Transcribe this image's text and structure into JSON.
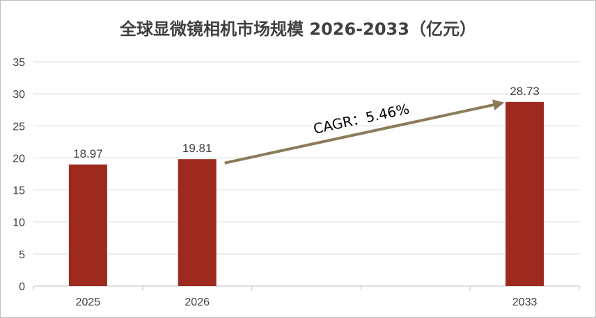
{
  "chart_data": {
    "type": "bar",
    "title": "全球显微镜相机市场规模 2026-2033（亿元）",
    "categories": [
      "2025",
      "2026",
      "",
      "",
      "2033"
    ],
    "values": [
      18.97,
      19.81,
      null,
      null,
      28.73
    ],
    "data_labels": [
      "18.97",
      "19.81",
      "",
      "",
      "28.73"
    ],
    "ylim": [
      0,
      35
    ],
    "yticks": [
      0,
      5,
      10,
      15,
      20,
      25,
      30,
      35
    ],
    "grid": true,
    "bar_color": "#9E2A1F",
    "annotation": {
      "text": "CAGR：5.46%",
      "arrow_color": "#8B7B5B",
      "from": {
        "category_index": 1,
        "value": 19.1
      },
      "to": {
        "category_index": 4,
        "value": 28.5
      }
    }
  }
}
